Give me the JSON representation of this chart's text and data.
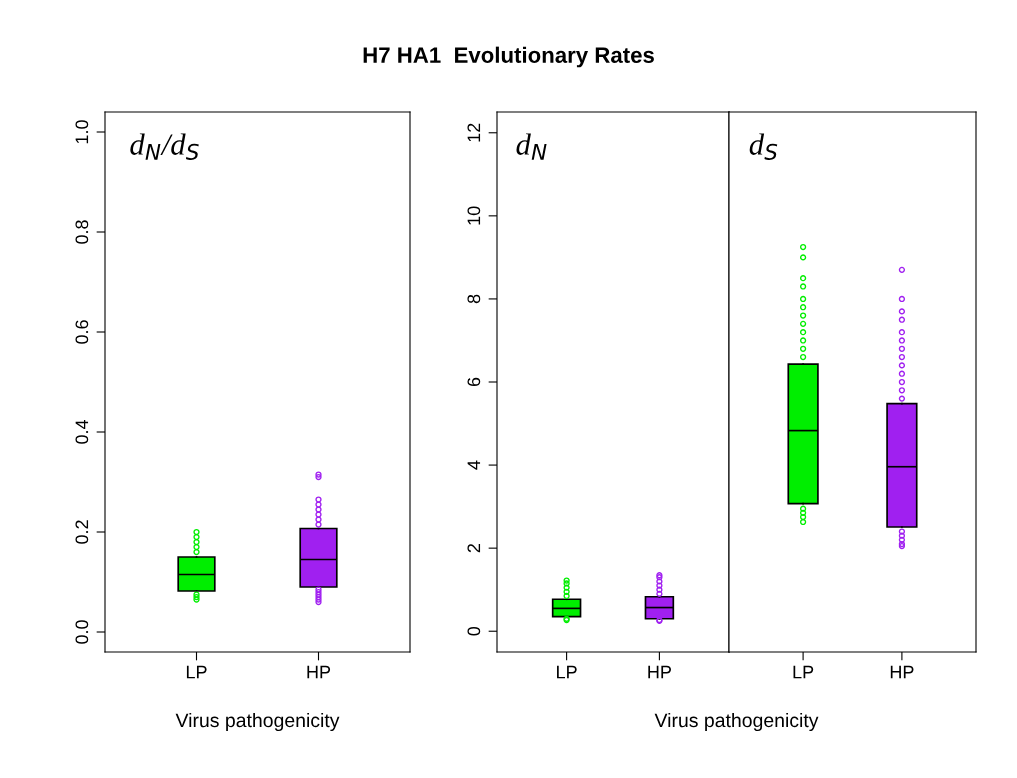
{
  "chart_data": [
    {
      "type": "box",
      "xlabel": "Virus pathogenicity",
      "categories": [
        "LP",
        "HP"
      ],
      "colors": [
        "#00ee00",
        "#a020f0"
      ],
      "ylim": [
        -0.04,
        1.04
      ],
      "yticks": [
        {
          "value": 0,
          "label": "0.0"
        },
        0.2,
        0.4,
        0.6,
        0.8,
        {
          "value": 1,
          "label": "1.0"
        }
      ],
      "annotations": [
        "d$_{N}$/d$_{S}$"
      ],
      "boxes": [
        {
          "low": 0.082,
          "q1": 0.082,
          "median": 0.115,
          "q3": 0.15,
          "high": 0.15,
          "outliers": [
            0.16,
            0.17,
            0.18,
            0.19,
            0.2,
            0.075,
            0.07,
            0.065
          ]
        },
        {
          "low": 0.09,
          "q1": 0.09,
          "median": 0.145,
          "q3": 0.207,
          "high": 0.207,
          "outliers": [
            0.215,
            0.225,
            0.235,
            0.245,
            0.255,
            0.265,
            0.31,
            0.315,
            0.085,
            0.08,
            0.075,
            0.07,
            0.065,
            0.06
          ]
        }
      ]
    },
    {
      "type": "box",
      "title": "H7 HA1  Evolutionary Rates",
      "xlabel": "Virus pathogenicity",
      "categories": [
        "LP",
        "HP"
      ],
      "colors": [
        "#00ee00",
        "#a020f0"
      ],
      "ylim": [
        -0.5,
        12.5
      ],
      "yticks": [
        0,
        2,
        4,
        6,
        8,
        10,
        12
      ],
      "annotations": [
        "d$_{N}$"
      ],
      "boxes": [
        {
          "low": 0.35,
          "q1": 0.35,
          "median": 0.55,
          "q3": 0.77,
          "high": 0.77,
          "outliers": [
            0.85,
            0.95,
            1.05,
            1.15,
            1.22,
            0.3,
            0.27
          ]
        },
        {
          "low": 0.3,
          "q1": 0.3,
          "median": 0.57,
          "q3": 0.83,
          "high": 0.83,
          "outliers": [
            0.9,
            1.0,
            1.1,
            1.2,
            1.3,
            1.35,
            0.27,
            0.25
          ]
        }
      ]
    },
    {
      "type": "box",
      "categories": [
        "LP",
        "HP"
      ],
      "colors": [
        "#00ee00",
        "#a020f0"
      ],
      "ylim": [
        -0.5,
        12.5
      ],
      "yticks": [
        0,
        2,
        4,
        6,
        8,
        10,
        12
      ],
      "tick_labels": "x",
      "annotations": [
        "d$_{S}$"
      ],
      "boxes": [
        {
          "low": 3.07,
          "q1": 3.07,
          "median": 4.83,
          "q3": 6.43,
          "high": 6.43,
          "outliers": [
            6.6,
            6.8,
            7.0,
            7.2,
            7.4,
            7.6,
            7.8,
            8.0,
            8.3,
            8.5,
            9.0,
            9.25,
            2.95,
            2.85,
            2.75,
            2.63
          ]
        },
        {
          "low": 2.51,
          "q1": 2.51,
          "median": 3.96,
          "q3": 5.48,
          "high": 5.48,
          "outliers": [
            5.6,
            5.8,
            6.0,
            6.2,
            6.4,
            6.6,
            6.8,
            7.0,
            7.2,
            7.5,
            7.7,
            8.0,
            8.7,
            2.4,
            2.3,
            2.2,
            2.1,
            2.05
          ]
        }
      ]
    }
  ]
}
